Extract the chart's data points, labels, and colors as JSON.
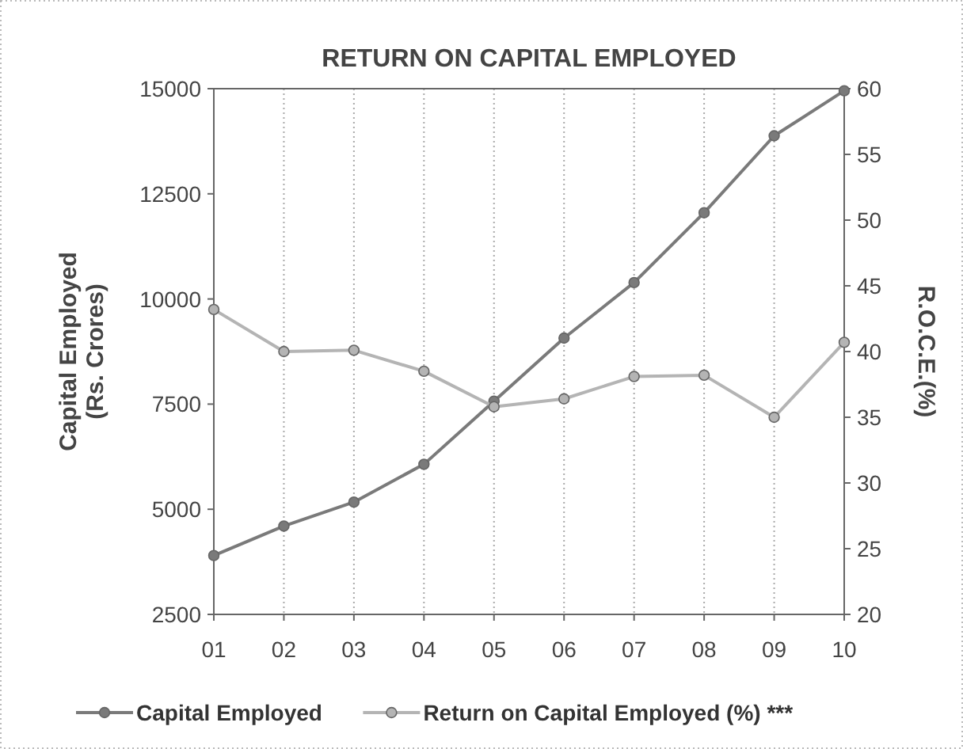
{
  "chart_data": {
    "type": "line",
    "title": "RETURN ON CAPITAL EMPLOYED",
    "ylabel": "Capital Employed\n(Rs. Crores)",
    "y2label": "R.O.C.E.(%)",
    "categories": [
      "01",
      "02",
      "03",
      "04",
      "05",
      "06",
      "07",
      "08",
      "09",
      "10"
    ],
    "series": [
      {
        "name": "Capital Employed",
        "color": "#7a7a7a",
        "values": [
          3900,
          4600,
          5170,
          6070,
          7570,
          9070,
          10390,
          12050,
          13880,
          14950
        ]
      },
      {
        "name": "Return on Capital Employed (%) ***",
        "color": "#b4b4b4",
        "axis": "y2",
        "values": [
          43.2,
          40.0,
          40.1,
          38.5,
          35.8,
          36.4,
          38.1,
          38.2,
          35.0,
          40.7
        ]
      }
    ],
    "ylim": [
      2500,
      15000
    ],
    "yticks": [
      2500,
      5000,
      7500,
      10000,
      12500,
      15000
    ],
    "y2lim": [
      20,
      60
    ],
    "y2ticks": [
      20,
      25,
      30,
      35,
      40,
      45,
      50,
      55,
      60
    ],
    "grid": "x",
    "legend": "bottom",
    "marker": "circle",
    "line_style": "solid"
  }
}
